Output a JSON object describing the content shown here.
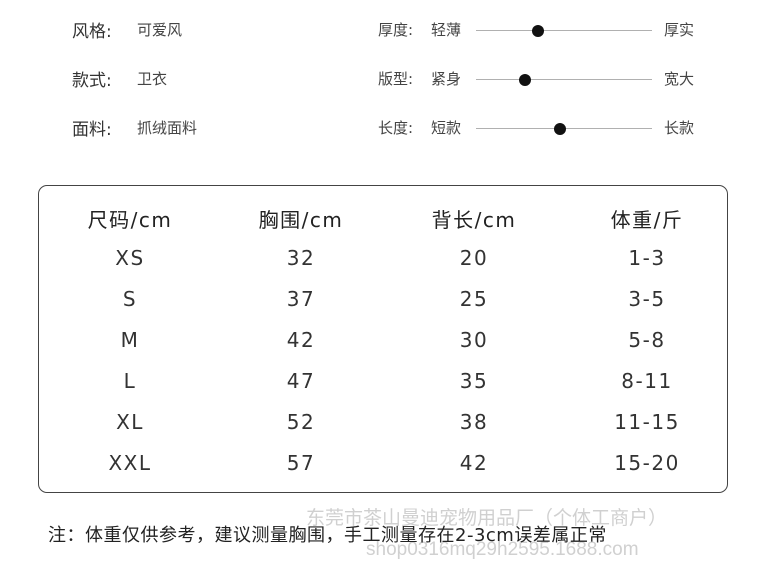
{
  "attributes": [
    {
      "label": "风格:",
      "value": "可爱风"
    },
    {
      "label": "款式:",
      "value": "卫衣"
    },
    {
      "label": "面料:",
      "value": "抓绒面料"
    }
  ],
  "sliders": [
    {
      "label": "厚度:",
      "left": "轻薄",
      "right": "厚实",
      "level": 0.35
    },
    {
      "label": "版型:",
      "left": "紧身",
      "right": "宽大",
      "level": 0.28
    },
    {
      "label": "长度:",
      "left": "短款",
      "right": "长款",
      "level": 0.48
    }
  ],
  "size_table": {
    "headers": [
      "尺码/cm",
      "胸围/cm",
      "背长/cm",
      "体重/斤"
    ],
    "rows": [
      [
        "XS",
        "32",
        "20",
        "1-3"
      ],
      [
        "S",
        "37",
        "25",
        "3-5"
      ],
      [
        "M",
        "42",
        "30",
        "5-8"
      ],
      [
        "L",
        "47",
        "35",
        "8-11"
      ],
      [
        "XL",
        "52",
        "38",
        "11-15"
      ],
      [
        "XXL",
        "57",
        "42",
        "15-20"
      ]
    ]
  },
  "watermark": {
    "line1": "东莞市茶山曼迪宠物用品厂（个体工商户）",
    "line2": "shop0316mq29h2595.1688.com"
  },
  "note": "注：体重仅供参考，建议测量胸围，手工测量存在2-3cm误差属正常"
}
